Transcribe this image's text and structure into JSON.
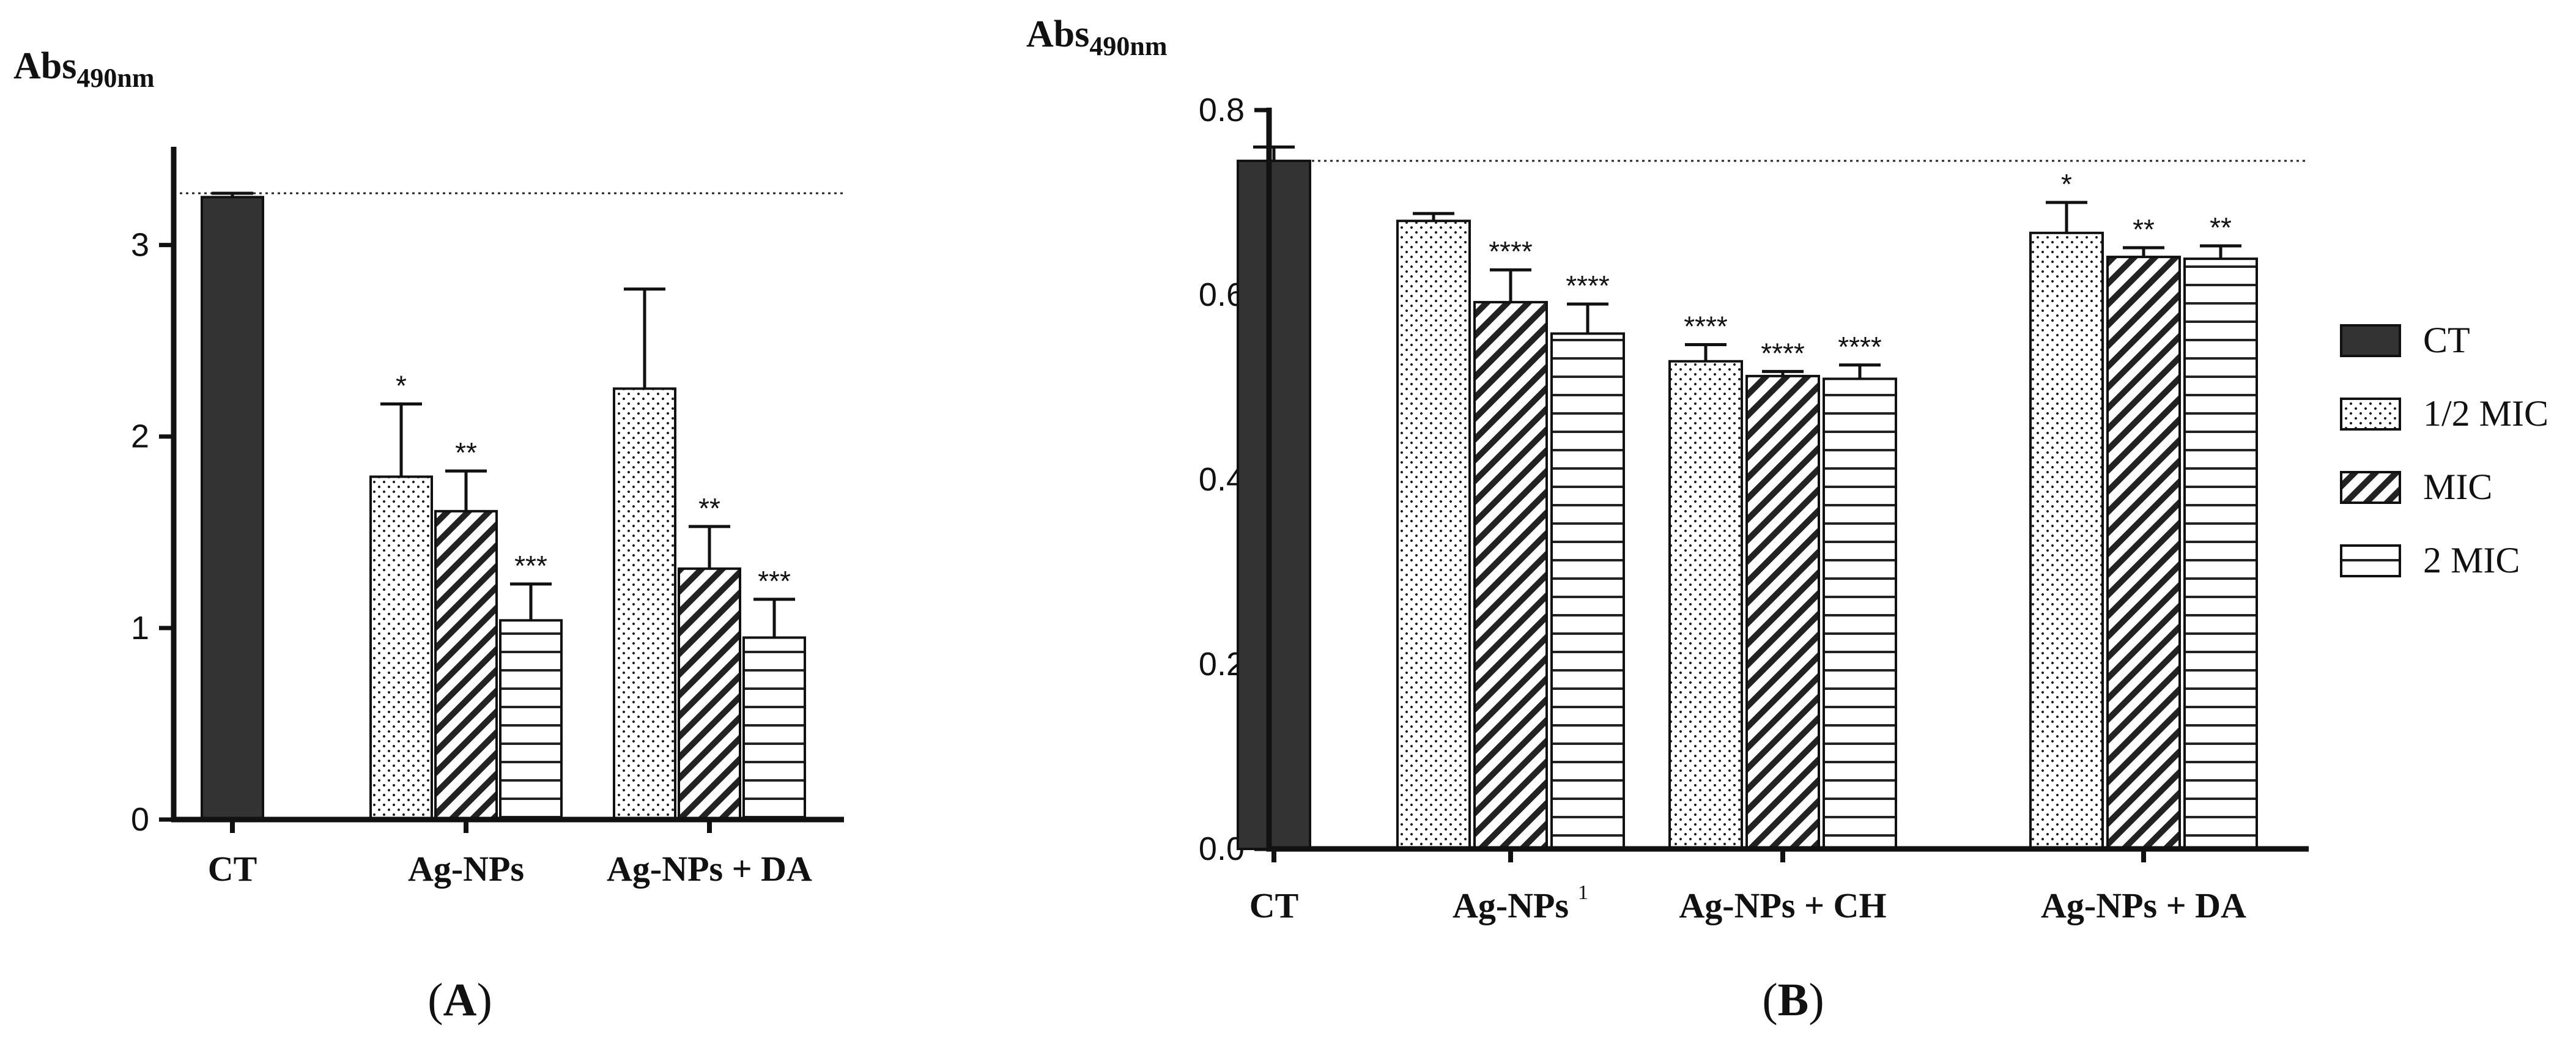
{
  "figure": {
    "ylabel_main": "Abs",
    "ylabel_sub": "490nm",
    "legend": [
      {
        "key": "ct",
        "label": "CT"
      },
      {
        "key": "half",
        "label": "1/2 MIC"
      },
      {
        "key": "mic",
        "label": "MIC"
      },
      {
        "key": "two",
        "label": "2 MIC"
      }
    ],
    "colors": {
      "ct_fill": "#333333",
      "stroke": "#111111",
      "background": "#ffffff"
    }
  },
  "chart_data": [
    {
      "type": "bar",
      "panel": "A",
      "panel_label_open": "(",
      "panel_label_letter": "A",
      "panel_label_close": ")",
      "ylabel": "Abs490nm",
      "ylim": [
        0,
        3.5
      ],
      "yticks": [
        {
          "value": 0,
          "label": "0"
        },
        {
          "value": 1,
          "label": "1"
        },
        {
          "value": 2,
          "label": "2"
        },
        {
          "value": 3,
          "label": "3"
        }
      ],
      "reference_line": 3.27,
      "categories": [
        {
          "label": "CT",
          "note": "",
          "bars": [
            {
              "series": "ct",
              "value": 3.25,
              "error": 0.02,
              "sig": ""
            }
          ]
        },
        {
          "label": "Ag-NPs",
          "note": "",
          "bars": [
            {
              "series": "half",
              "value": 1.79,
              "error": 0.38,
              "sig": "*"
            },
            {
              "series": "mic",
              "value": 1.61,
              "error": 0.21,
              "sig": "**"
            },
            {
              "series": "two",
              "value": 1.04,
              "error": 0.19,
              "sig": "***"
            }
          ]
        },
        {
          "label": "Ag-NPs + DA",
          "note": "",
          "bars": [
            {
              "series": "half",
              "value": 2.25,
              "error": 0.52,
              "sig": ""
            },
            {
              "series": "mic",
              "value": 1.31,
              "error": 0.22,
              "sig": "**"
            },
            {
              "series": "two",
              "value": 0.95,
              "error": 0.2,
              "sig": "***"
            }
          ]
        }
      ]
    },
    {
      "type": "bar",
      "panel": "B",
      "panel_label_open": "(",
      "panel_label_letter": "B",
      "panel_label_close": ")",
      "ylabel": "Abs490nm",
      "ylim": [
        0,
        0.8
      ],
      "yticks": [
        {
          "value": 0,
          "label": "0.0"
        },
        {
          "value": 0.2,
          "label": "0.2"
        },
        {
          "value": 0.4,
          "label": "0.4"
        },
        {
          "value": 0.6,
          "label": "0.6"
        },
        {
          "value": 0.8,
          "label": "0.8"
        }
      ],
      "reference_line": 0.745,
      "categories": [
        {
          "label": "CT",
          "note": "",
          "bars": [
            {
              "series": "ct",
              "value": 0.745,
              "error": 0.015,
              "sig": ""
            }
          ]
        },
        {
          "label": "Ag-NPs",
          "note": "1",
          "bars": [
            {
              "series": "half",
              "value": 0.68,
              "error": 0.008,
              "sig": ""
            },
            {
              "series": "mic",
              "value": 0.592,
              "error": 0.035,
              "sig": "****"
            },
            {
              "series": "two",
              "value": 0.558,
              "error": 0.032,
              "sig": "****"
            }
          ]
        },
        {
          "label": "Ag-NPs + CH",
          "note": "",
          "bars": [
            {
              "series": "half",
              "value": 0.528,
              "error": 0.018,
              "sig": "****"
            },
            {
              "series": "mic",
              "value": 0.512,
              "error": 0.005,
              "sig": "****"
            },
            {
              "series": "two",
              "value": 0.509,
              "error": 0.015,
              "sig": "****"
            }
          ]
        },
        {
          "label": "Ag-NPs + DA",
          "note": "",
          "bars": [
            {
              "series": "half",
              "value": 0.667,
              "error": 0.033,
              "sig": "*"
            },
            {
              "series": "mic",
              "value": 0.641,
              "error": 0.01,
              "sig": "**"
            },
            {
              "series": "two",
              "value": 0.639,
              "error": 0.014,
              "sig": "**"
            }
          ]
        }
      ]
    }
  ]
}
